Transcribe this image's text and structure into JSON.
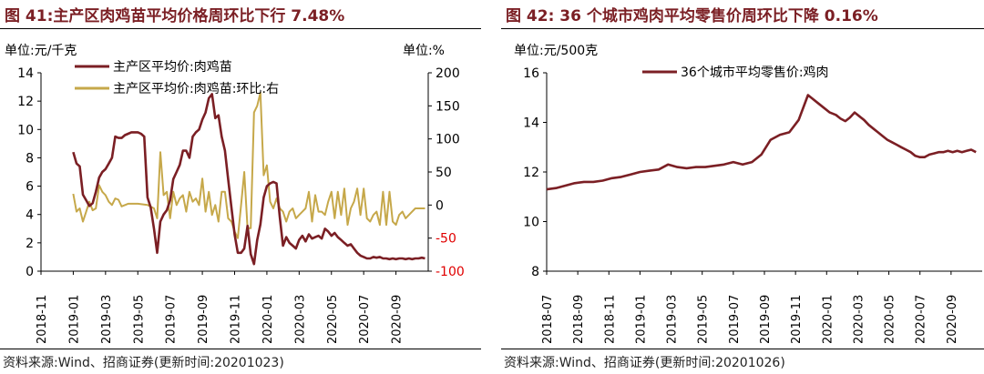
{
  "left": {
    "title": "图 41:主产区肉鸡苗平均价格周环比下行 7.48%",
    "source": "资料来源:Wind、招商证券(更新时间:20201023)",
    "chart_data": {
      "type": "line",
      "y_unit_left": "单位:元/千克",
      "y_unit_right": "单位:%",
      "ylim_left": [
        0,
        14
      ],
      "yticks_left": [
        "0",
        "2",
        "4",
        "6",
        "8",
        "10",
        "12",
        "14"
      ],
      "ylim_right": [
        -100,
        200
      ],
      "yticks_right": [
        "-100",
        "-50",
        "0",
        "50",
        "100",
        "150",
        "200"
      ],
      "x_ticks": [
        "2018-11",
        "2019-01",
        "2019-03",
        "2019-05",
        "2019-07",
        "2019-09",
        "2019-11",
        "2020-01",
        "2020-03",
        "2020-05",
        "2020-07",
        "2020-09"
      ],
      "x_range": [
        0,
        24
      ],
      "legend_position": "top-left",
      "series": [
        {
          "name": "主产区平均价:肉鸡苗",
          "axis": "left",
          "color": "#7b1f24",
          "x": [
            2.0,
            2.2,
            2.4,
            2.6,
            2.8,
            3.0,
            3.2,
            3.4,
            3.6,
            3.8,
            4.0,
            4.2,
            4.4,
            4.6,
            4.8,
            5.0,
            5.2,
            5.4,
            5.6,
            5.8,
            6.0,
            6.2,
            6.4,
            6.6,
            6.8,
            7.0,
            7.2,
            7.4,
            7.6,
            7.8,
            8.0,
            8.2,
            8.4,
            8.6,
            8.8,
            9.0,
            9.2,
            9.4,
            9.6,
            9.8,
            10.0,
            10.2,
            10.4,
            10.6,
            10.8,
            11.0,
            11.2,
            11.4,
            11.6,
            11.8,
            12.0,
            12.2,
            12.4,
            12.6,
            12.8,
            13.0,
            13.2,
            13.4,
            13.6,
            13.8,
            14.0,
            14.2,
            14.4,
            14.6,
            14.8,
            15.0,
            15.2,
            15.4,
            15.6,
            15.8,
            16.0,
            16.2,
            16.4,
            16.6,
            16.8,
            17.0,
            17.2,
            17.4,
            17.6,
            17.8,
            18.0,
            18.2,
            18.4,
            18.6,
            18.8,
            19.0,
            19.2,
            19.4,
            19.6,
            19.8,
            20.0,
            20.2,
            20.4,
            20.6,
            20.8,
            21.0,
            21.2,
            21.4,
            21.6,
            21.8,
            22.0,
            22.2,
            22.4,
            22.6,
            22.8,
            23.0,
            23.2,
            23.4,
            23.6,
            23.8
          ],
          "values": [
            8.4,
            7.6,
            7.4,
            5.4,
            5.0,
            4.6,
            4.8,
            5.6,
            6.6,
            7.0,
            7.2,
            7.6,
            8.0,
            9.5,
            9.4,
            9.4,
            9.6,
            9.7,
            9.8,
            9.8,
            9.8,
            9.7,
            9.5,
            5.2,
            4.5,
            3.0,
            1.3,
            3.5,
            4.0,
            4.3,
            5.0,
            6.5,
            7.0,
            7.5,
            8.5,
            8.5,
            8.0,
            9.5,
            9.8,
            10.0,
            10.7,
            11.2,
            12.2,
            12.5,
            10.8,
            11.0,
            9.5,
            8.5,
            6.5,
            4.5,
            2.6,
            1.3,
            1.3,
            1.6,
            3.2,
            1.2,
            0.5,
            2.2,
            3.3,
            5.2,
            6.0,
            6.2,
            6.3,
            6.2,
            3.8,
            1.8,
            2.4,
            2.0,
            1.8,
            1.6,
            2.2,
            2.5,
            2.1,
            2.6,
            2.3,
            2.4,
            2.5,
            2.3,
            3.0,
            2.8,
            2.5,
            2.7,
            2.4,
            2.2,
            2.0,
            1.8,
            1.9,
            1.6,
            1.3,
            1.1,
            1.0,
            0.9,
            0.9,
            1.0,
            0.95,
            1.0,
            0.9,
            0.9,
            0.85,
            0.9,
            0.85,
            0.9,
            0.9,
            0.85,
            0.9,
            0.85,
            0.9,
            0.9,
            0.95,
            0.9
          ]
        },
        {
          "name": "主产区平均价:肉鸡苗:环比:右",
          "axis": "right",
          "color": "#c6a84a",
          "x": [
            2.0,
            2.2,
            2.4,
            2.6,
            2.8,
            3.0,
            3.2,
            3.4,
            3.6,
            3.8,
            4.0,
            4.2,
            4.4,
            4.6,
            4.8,
            5.0,
            5.4,
            6.0,
            6.6,
            7.0,
            7.2,
            7.4,
            7.6,
            7.8,
            8.0,
            8.2,
            8.4,
            8.6,
            8.8,
            9.0,
            9.2,
            9.4,
            9.6,
            9.8,
            10.0,
            10.2,
            10.4,
            10.6,
            10.8,
            11.0,
            11.2,
            11.4,
            11.6,
            11.8,
            12.0,
            12.2,
            12.4,
            12.6,
            12.8,
            13.0,
            13.2,
            13.4,
            13.6,
            13.8,
            14.0,
            14.2,
            14.4,
            14.6,
            14.8,
            15.0,
            15.2,
            15.4,
            15.6,
            15.8,
            16.0,
            16.2,
            16.4,
            16.6,
            16.8,
            17.0,
            17.2,
            17.4,
            17.6,
            17.8,
            18.0,
            18.2,
            18.4,
            18.6,
            18.8,
            19.0,
            19.2,
            19.4,
            19.6,
            19.8,
            20.0,
            20.2,
            20.4,
            20.6,
            20.8,
            21.0,
            21.2,
            21.4,
            21.6,
            21.8,
            22.0,
            22.2,
            22.4,
            22.6,
            22.8,
            23.0,
            23.2,
            23.4,
            23.6,
            23.8
          ],
          "values": [
            17,
            -10,
            -5,
            -25,
            -10,
            5,
            -8,
            -5,
            30,
            20,
            15,
            5,
            0,
            10,
            8,
            -2,
            2,
            2,
            0,
            -5,
            -20,
            80,
            15,
            20,
            -20,
            20,
            0,
            10,
            15,
            -10,
            20,
            5,
            10,
            0,
            40,
            -10,
            20,
            -15,
            0,
            -25,
            20,
            20,
            -20,
            -25,
            -40,
            -50,
            0,
            50,
            -35,
            -35,
            140,
            150,
            170,
            45,
            60,
            5,
            -5,
            10,
            -5,
            -10,
            -25,
            -10,
            -5,
            -20,
            -15,
            -10,
            -5,
            20,
            -25,
            15,
            -10,
            -10,
            -15,
            5,
            20,
            -20,
            20,
            -15,
            25,
            -30,
            -5,
            5,
            25,
            -15,
            25,
            -20,
            -25,
            -15,
            -10,
            -30,
            20,
            -30,
            20,
            -25,
            -30,
            -15,
            -10,
            -20,
            -15,
            -10,
            -5,
            -5,
            -5,
            -5
          ]
        }
      ]
    }
  },
  "right": {
    "title": "图 42: 36 个城市鸡肉平均零售价周环比下降 0.16%",
    "source": "资料来源:Wind、招商证券(更新时间:20201026)",
    "chart_data": {
      "type": "line",
      "y_unit": "单位:元/500克",
      "ylim": [
        8,
        16
      ],
      "yticks": [
        "8",
        "10",
        "12",
        "14",
        "16"
      ],
      "x_ticks": [
        "2018-07",
        "2018-09",
        "2018-11",
        "2019-01",
        "2019-03",
        "2019-05",
        "2019-07",
        "2019-09",
        "2019-11",
        "2020-01",
        "2020-03",
        "2020-05",
        "2020-07",
        "2020-09"
      ],
      "x_range": [
        0,
        28
      ],
      "legend_position": "top-center",
      "series": [
        {
          "name": "36个城市平均零售价:鸡肉",
          "color": "#7b1f24",
          "x": [
            0.0,
            0.6,
            1.2,
            1.8,
            2.4,
            3.0,
            3.6,
            4.2,
            4.8,
            5.4,
            6.0,
            6.6,
            7.2,
            7.8,
            8.4,
            9.0,
            9.6,
            10.2,
            10.8,
            11.4,
            12.0,
            12.6,
            13.2,
            13.8,
            14.4,
            15.0,
            15.6,
            16.2,
            16.8,
            17.4,
            17.8,
            18.2,
            18.6,
            18.9,
            19.2,
            19.5,
            19.8,
            20.1,
            20.4,
            20.7,
            21.0,
            21.3,
            21.6,
            21.9,
            22.2,
            22.5,
            22.8,
            23.1,
            23.4,
            23.7,
            24.0,
            24.3,
            24.6,
            24.9,
            25.2,
            25.5,
            25.8,
            26.1,
            26.4,
            26.7,
            27.0,
            27.3,
            27.6
          ],
          "values": [
            11.3,
            11.35,
            11.45,
            11.55,
            11.6,
            11.6,
            11.65,
            11.75,
            11.8,
            11.9,
            12.0,
            12.05,
            12.1,
            12.3,
            12.2,
            12.15,
            12.2,
            12.2,
            12.25,
            12.3,
            12.4,
            12.3,
            12.4,
            12.7,
            13.3,
            13.5,
            13.6,
            14.1,
            15.1,
            14.8,
            14.6,
            14.4,
            14.3,
            14.15,
            14.05,
            14.2,
            14.4,
            14.25,
            14.1,
            13.9,
            13.75,
            13.6,
            13.45,
            13.3,
            13.2,
            13.1,
            13.0,
            12.9,
            12.8,
            12.65,
            12.6,
            12.6,
            12.7,
            12.75,
            12.8,
            12.8,
            12.85,
            12.8,
            12.85,
            12.8,
            12.85,
            12.9,
            12.8
          ]
        }
      ]
    }
  }
}
